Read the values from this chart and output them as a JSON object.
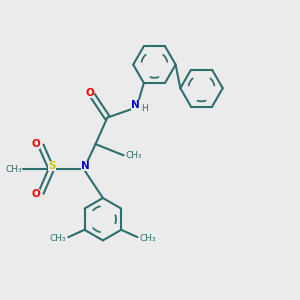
{
  "bg_color": "#ebebeb",
  "bond_color": "#2d6e6e",
  "N_color": "#0000cc",
  "O_color": "#ff0000",
  "S_color": "#cccc00",
  "line_width": 1.5,
  "dpi": 100,
  "fig_w": 3.0,
  "fig_h": 3.0,
  "xlim": [
    0,
    10
  ],
  "ylim": [
    0,
    10
  ],
  "ring_r": 0.72,
  "font_size_atom": 7.5,
  "font_size_small": 6.5
}
